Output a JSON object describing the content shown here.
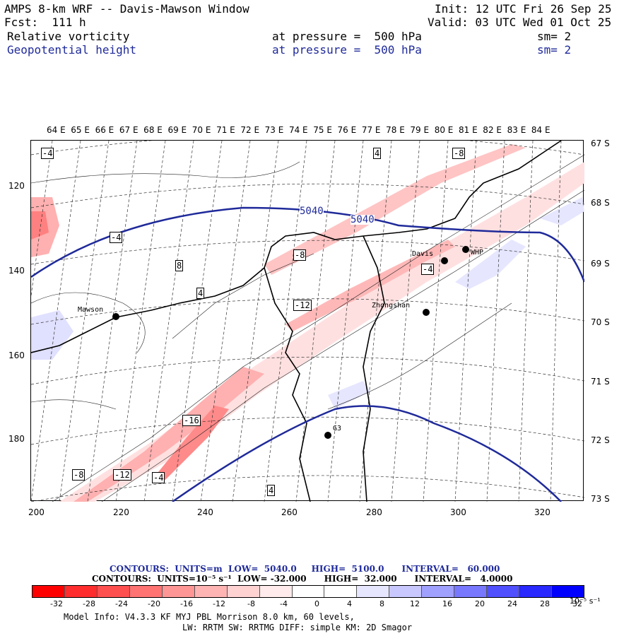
{
  "header": {
    "title": "AMPS 8-km WRF -- Davis-Mawson Window",
    "fcst": "Fcst:  111 h",
    "init": "Init: 12 UTC Fri 26 Sep 25",
    "valid": "Valid: 03 UTC Wed 01 Oct 25",
    "field1": "Relative vorticity",
    "field1_level": "at pressure =  500 hPa",
    "field1_sm": "sm= 2",
    "field2": "Geopotential height",
    "field2_level": "at pressure =  500 hPa",
    "field2_sm": "sm= 2"
  },
  "map": {
    "longitude_labels": "64 E  65 E  66 E  67 E  68 E  69 E  70 E  71 E  72 E  73 E  74 E  75 E  76 E  77 E  78 E  79 E  80 E  81 E  82 E  83 E  84 E",
    "latitude_labels": [
      "67 S",
      "68 S",
      "69 S",
      "70 S",
      "71 S",
      "72 S",
      "73 S"
    ],
    "y_ticks": [
      "120",
      "140",
      "160",
      "180"
    ],
    "x_ticks": [
      "200",
      "220",
      "240",
      "260",
      "280",
      "300",
      "320"
    ],
    "stations": [
      {
        "name": "Mawson"
      },
      {
        "name": "Davis"
      },
      {
        "name": "WHP"
      },
      {
        "name": "Zhongshan"
      },
      {
        "name": "G3"
      }
    ],
    "height_contour_labels": [
      "5040",
      "5040"
    ],
    "vorticity_labels": [
      "-4",
      "4",
      "-8",
      "8",
      "-4",
      "-4",
      "4",
      "-8",
      "-12",
      "-16",
      "-12",
      "-4",
      "-8",
      "4"
    ]
  },
  "legend": {
    "contours1": "CONTOURS:  UNITS=m  LOW=  5040.0     HIGH=  5100.0      INTERVAL=   60.000",
    "contours2": "CONTOURS:  UNITS=10⁻⁵ s⁻¹  LOW= -32.000      HIGH=  32.000      INTERVAL=   4.0000",
    "colorbar_labels": [
      "-32",
      "-28",
      "-24",
      "-20",
      "-16",
      "-12",
      "-8",
      "-4",
      "0",
      "4",
      "8",
      "12",
      "16",
      "20",
      "24",
      "28",
      "32"
    ],
    "colorbar_unit": "10⁻⁵ s⁻¹",
    "colors": [
      "#ff0000",
      "#ff2d2d",
      "#ff5050",
      "#ff7373",
      "#ff9696",
      "#ffb4b4",
      "#ffd2d2",
      "#ffebeb",
      "#ffffff",
      "#ffffff",
      "#e6e6ff",
      "#c8c8ff",
      "#a0a0ff",
      "#7878ff",
      "#5050ff",
      "#2828ff",
      "#0000ff"
    ]
  },
  "footer": {
    "line1": "Model Info: V4.3.3   KF       MYJ PBL  Morrison            8.0 km,  60 levels,",
    "line2": "LW: RRTM SW: RRTMG   DIFF: simple KM: 2D Smagor"
  }
}
